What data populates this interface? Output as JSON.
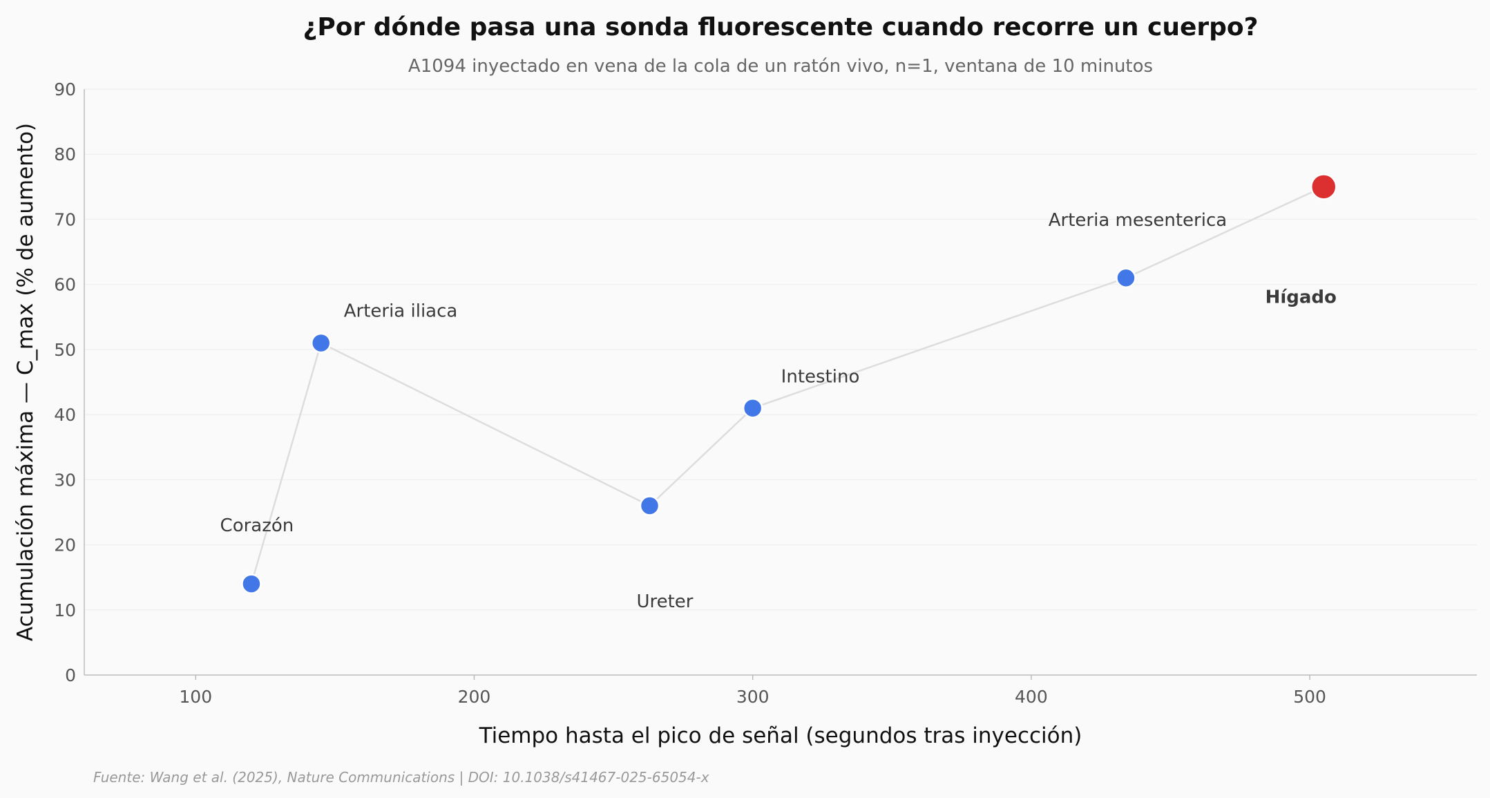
{
  "chart_data": {
    "type": "scatter",
    "title": "¿Por dónde pasa una sonda fluorescente cuando recorre un cuerpo?",
    "subtitle": "A1094 inyectado en vena de la cola de un ratón vivo, n=1, ventana de 10 minutos",
    "xlabel": "Tiempo hasta el pico de señal (segundos tras inyección)",
    "ylabel": "Acumulación máxima — C_max (% de aumento)",
    "xlim": [
      60,
      560
    ],
    "ylim": [
      0,
      90
    ],
    "xticks": [
      100,
      200,
      300,
      400,
      500
    ],
    "yticks": [
      0,
      10,
      20,
      30,
      40,
      50,
      60,
      70,
      80,
      90
    ],
    "grid": "horizontal",
    "connected_line": true,
    "points": [
      {
        "label": "Corazón",
        "x": 120,
        "y": 14,
        "highlight": false
      },
      {
        "label": "Arteria iliaca",
        "x": 145,
        "y": 51,
        "highlight": false
      },
      {
        "label": "Ureter",
        "x": 263,
        "y": 26,
        "highlight": false
      },
      {
        "label": "Intestino",
        "x": 300,
        "y": 41,
        "highlight": false
      },
      {
        "label": "Arteria mesenterica",
        "x": 434,
        "y": 61,
        "highlight": false
      },
      {
        "label": "Hígado",
        "x": 505,
        "y": 75,
        "highlight": true
      }
    ],
    "colors": {
      "point": "#4277e8",
      "highlight": "#dc2f2f",
      "line": "#dddddd",
      "grid": "#eeeeee"
    },
    "source": "Fuente: Wang et al. (2025), Nature Communications | DOI: 10.1038/s41467-025-65054-x"
  }
}
